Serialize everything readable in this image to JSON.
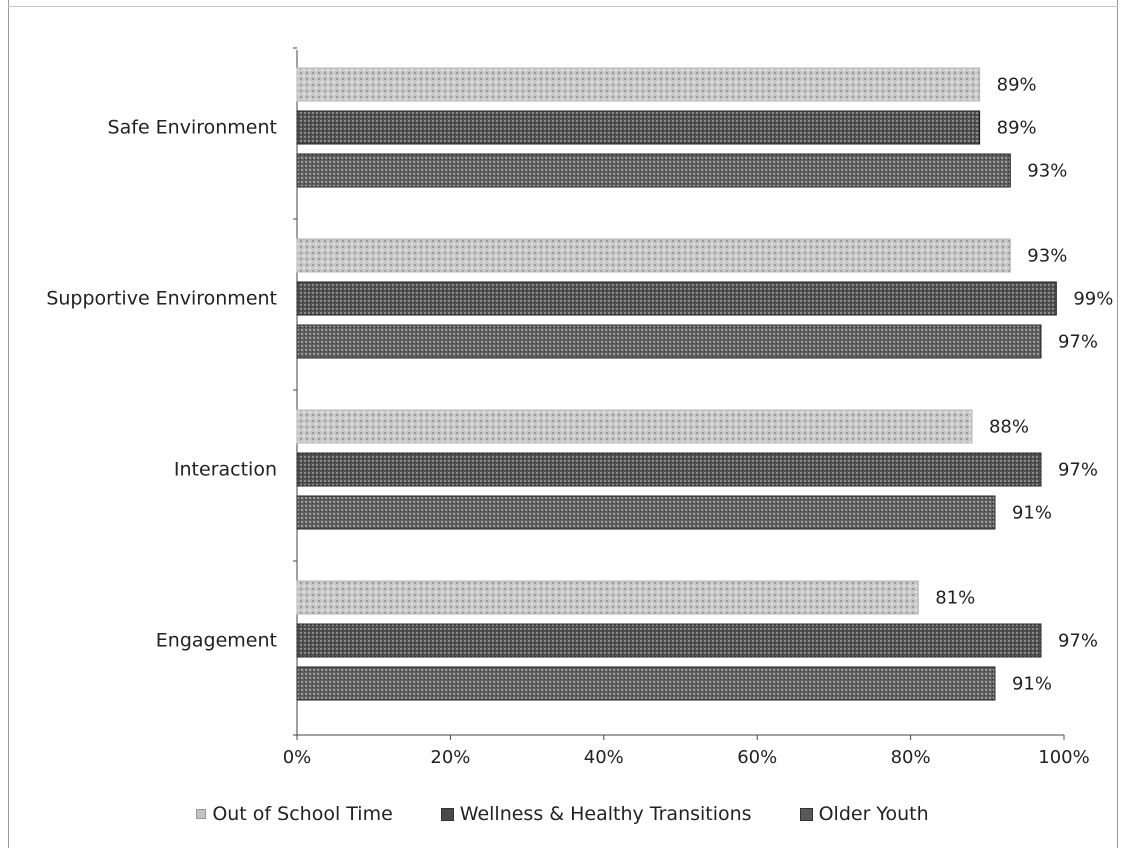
{
  "chart_data": {
    "type": "bar",
    "orientation": "horizontal",
    "categories": [
      "Safe Environment",
      "Supportive Environment",
      "Interaction",
      "Engagement"
    ],
    "series": [
      {
        "name": "Out of School Time",
        "values": [
          89,
          93,
          88,
          81
        ],
        "color": "#c2c2c2"
      },
      {
        "name": "Wellness & Healthy Transitions",
        "values": [
          89,
          99,
          97,
          97
        ],
        "color": "#4d4d4d"
      },
      {
        "name": "Older Youth",
        "values": [
          93,
          97,
          91,
          91
        ],
        "color": "#5a5a5a"
      }
    ],
    "value_labels": [
      [
        "89%",
        "89%",
        "93%"
      ],
      [
        "93%",
        "99%",
        "97%"
      ],
      [
        "88%",
        "97%",
        "91%"
      ],
      [
        "81%",
        "97%",
        "91%"
      ]
    ],
    "xticks": [
      "0%",
      "20%",
      "40%",
      "60%",
      "80%",
      "100%"
    ],
    "xlim": [
      0,
      100
    ],
    "grid": false,
    "legend_position": "bottom",
    "title": "",
    "xlabel": "",
    "ylabel": ""
  }
}
